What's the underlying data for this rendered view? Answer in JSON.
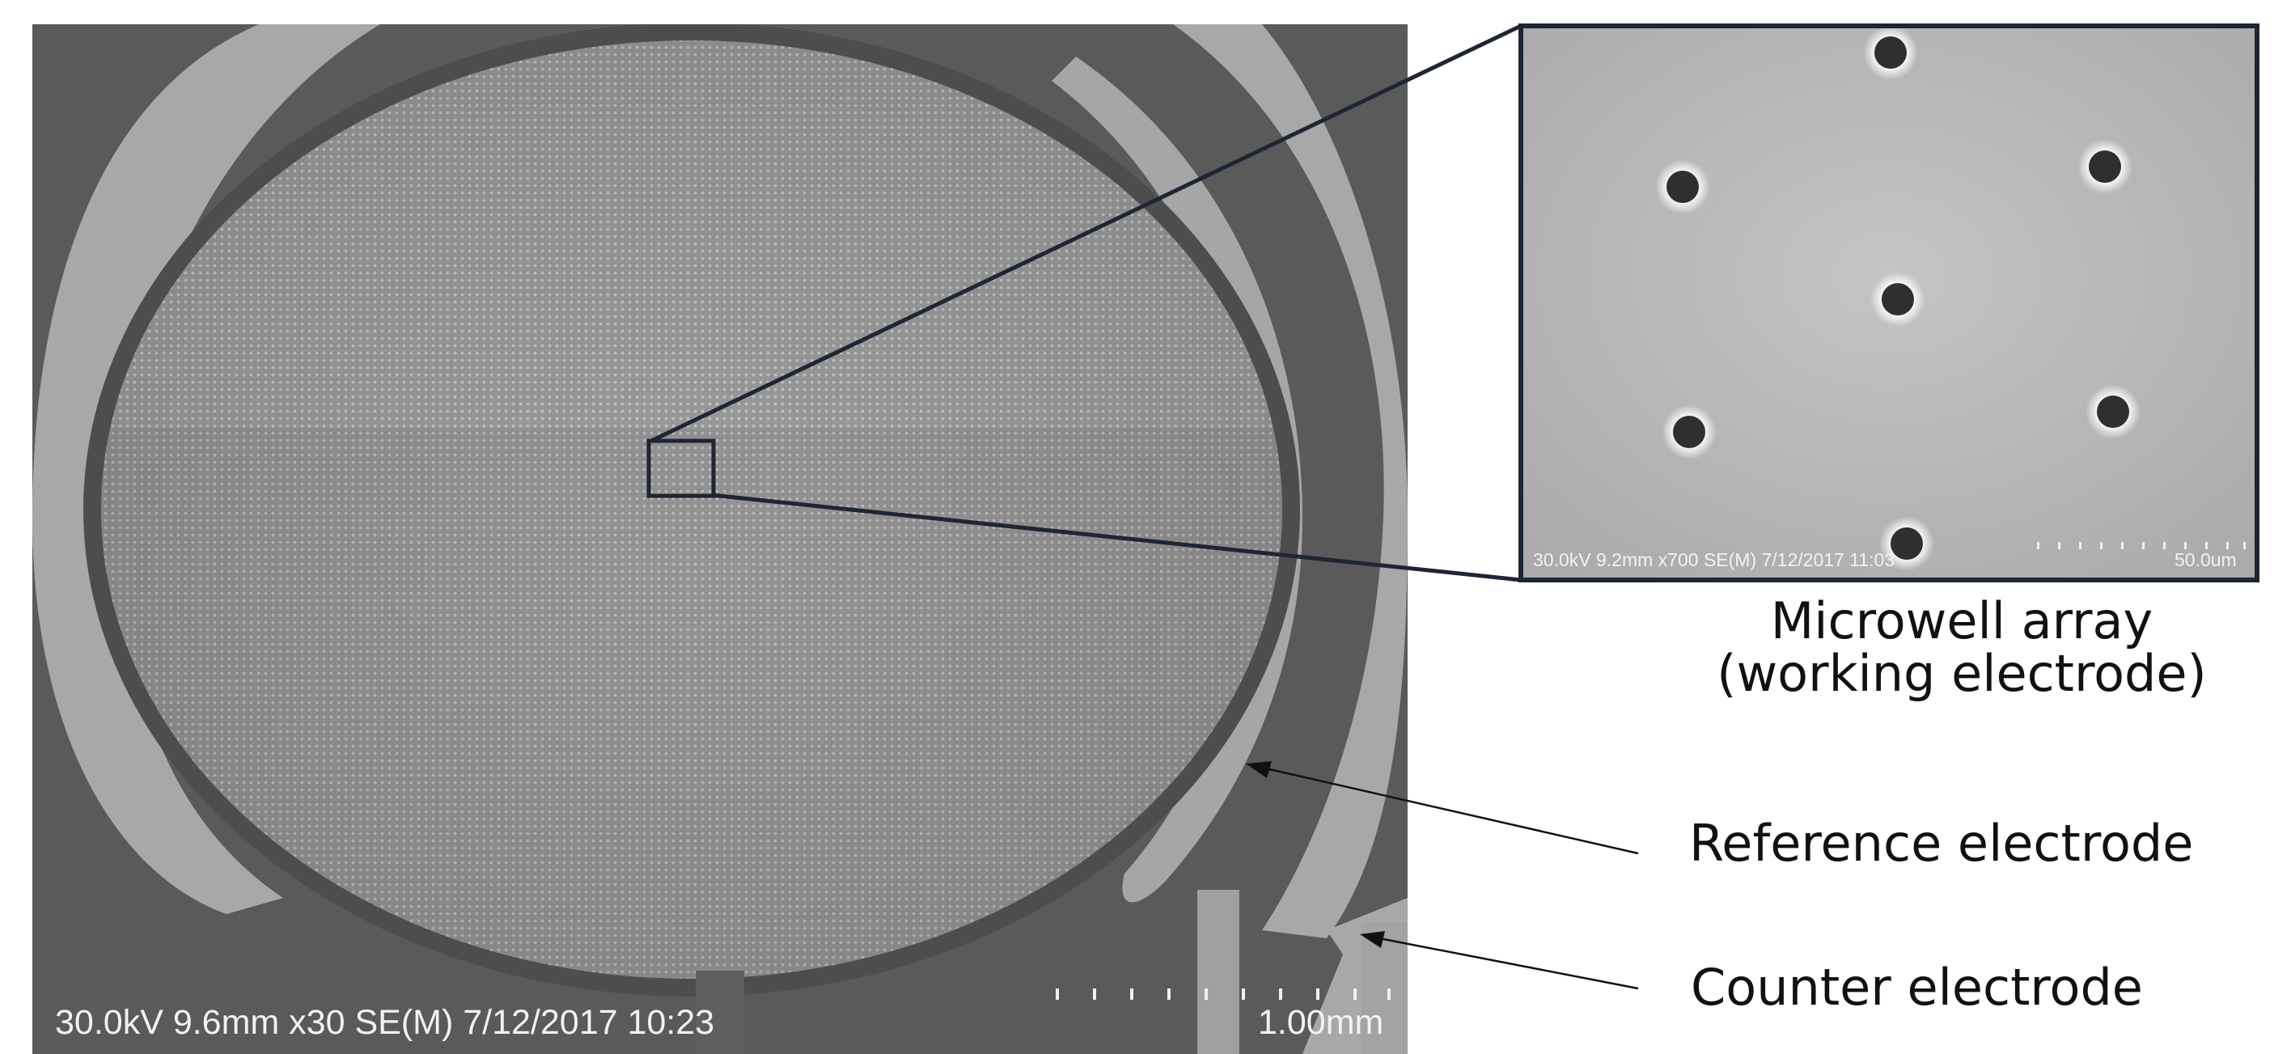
{
  "main_image": {
    "info_bar": {
      "settings": "30.0kV 9.6mm x30 SE(M) 7/12/2017 10:23",
      "scale_label": "1.00mm"
    }
  },
  "inset_image": {
    "info_bar": {
      "settings": "30.0kV 9.2mm x700 SE(M) 7/12/2017 11:03",
      "scale_label": "50.0um"
    }
  },
  "labels": {
    "microwell_line1": "Microwell array",
    "microwell_line2": "(working electrode)",
    "reference": "Reference electrode",
    "counter": "Counter electrode"
  },
  "colors": {
    "background": "#ffffff",
    "sem_substrate": "#5a5a5a",
    "electrode_metal": "#aaaaaa",
    "array_disc": "#9d9d9d",
    "inset_background": "#b8b8b8",
    "frame": "#1e2533"
  }
}
